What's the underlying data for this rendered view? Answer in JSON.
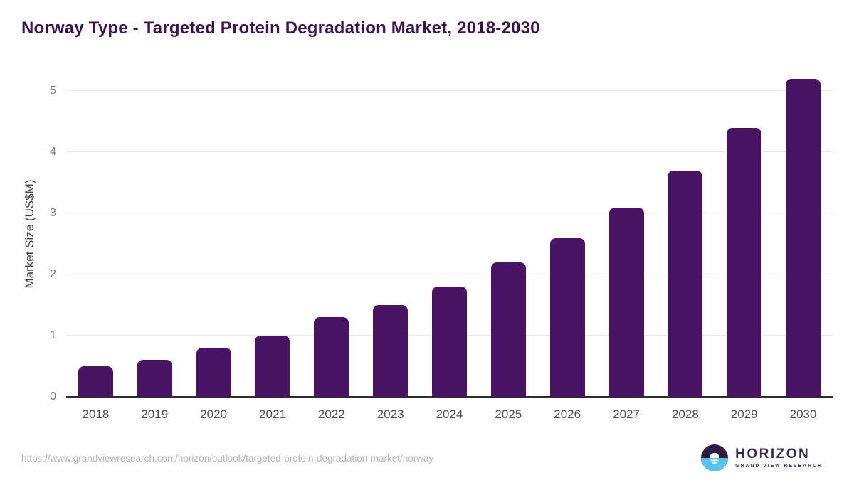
{
  "header": {
    "title": "Norway Type - Targeted Protein Degradation Market, 2018-2030"
  },
  "chart_data": {
    "type": "bar",
    "title": "Norway Type - Targeted Protein Degradation Market, 2018-2030",
    "categories": [
      "2018",
      "2019",
      "2020",
      "2021",
      "2022",
      "2023",
      "2024",
      "2025",
      "2026",
      "2027",
      "2028",
      "2029",
      "2030"
    ],
    "values": [
      0.5,
      0.6,
      0.8,
      1.0,
      1.3,
      1.5,
      1.8,
      2.2,
      2.6,
      3.1,
      3.7,
      4.4,
      5.2
    ],
    "xlabel": "",
    "ylabel": "Market Size (US$M)",
    "ylim": [
      0,
      5.33
    ],
    "yticks": [
      0,
      1,
      2,
      3,
      4,
      5
    ],
    "grid": true,
    "legend": "none",
    "bar_color": "#471362"
  },
  "colors": {
    "title": "#3b1053",
    "bar": "#471362",
    "gridline": "#e9e9e9",
    "axis_line": "#2e2e2e",
    "logo_purple": "#2b1b45",
    "logo_blue": "#56c5ee"
  },
  "footer": {
    "source_url": "https://www.grandviewresearch.com/horizon/outlook/targeted-protein-degradation-market/norway",
    "logo": {
      "name": "HORIZON",
      "subtitle": "GRAND VIEW RESEARCH"
    }
  }
}
